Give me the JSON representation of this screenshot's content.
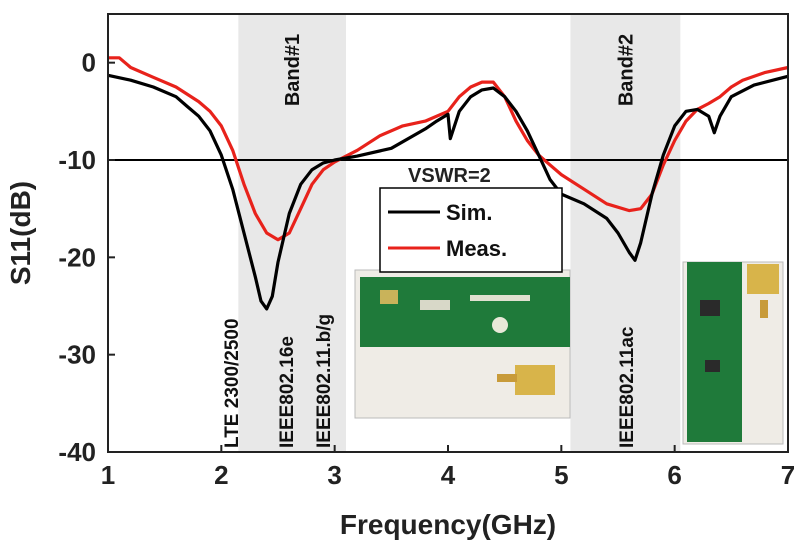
{
  "chart_data": {
    "type": "line",
    "xlabel": "Frequency(GHz)",
    "ylabel": "S11(dB)",
    "xlim": [
      1,
      7
    ],
    "ylim": [
      -40,
      5
    ],
    "xticks": [
      "1",
      "2",
      "3",
      "4",
      "5",
      "6",
      "7"
    ],
    "yticks": [
      "0",
      "-10",
      "-20",
      "-30",
      "-40"
    ],
    "grid": false,
    "legend_position": "center",
    "series": [
      {
        "name": "Sim.",
        "color": "#000000",
        "x": [
          1.0,
          1.2,
          1.4,
          1.6,
          1.7,
          1.8,
          1.9,
          2.0,
          2.1,
          2.2,
          2.3,
          2.35,
          2.4,
          2.45,
          2.5,
          2.6,
          2.7,
          2.8,
          2.9,
          3.0,
          3.2,
          3.5,
          3.8,
          3.9,
          4.0,
          4.02,
          4.1,
          4.2,
          4.3,
          4.4,
          4.5,
          4.6,
          4.7,
          4.8,
          4.9,
          5.0,
          5.2,
          5.4,
          5.5,
          5.6,
          5.65,
          5.7,
          5.8,
          5.9,
          6.0,
          6.1,
          6.2,
          6.3,
          6.35,
          6.4,
          6.5,
          6.7,
          6.9,
          7.0
        ],
        "y": [
          -1.3,
          -1.8,
          -2.5,
          -3.5,
          -4.5,
          -5.5,
          -7.0,
          -9.5,
          -13.0,
          -17.5,
          -22.0,
          -24.5,
          -25.3,
          -24.0,
          -20.5,
          -15.5,
          -12.5,
          -11.0,
          -10.3,
          -10.0,
          -9.6,
          -8.8,
          -6.8,
          -6.0,
          -5.3,
          -7.8,
          -5.0,
          -3.5,
          -2.8,
          -2.6,
          -3.5,
          -5.0,
          -7.0,
          -9.5,
          -12.0,
          -13.5,
          -14.5,
          -16.0,
          -17.5,
          -19.5,
          -20.3,
          -18.5,
          -13.5,
          -9.5,
          -6.5,
          -5.0,
          -4.8,
          -5.5,
          -7.2,
          -5.5,
          -3.5,
          -2.3,
          -1.7,
          -1.4
        ]
      },
      {
        "name": "Meas.",
        "color": "#e8221b",
        "x": [
          1.0,
          1.1,
          1.2,
          1.4,
          1.6,
          1.8,
          1.9,
          2.0,
          2.1,
          2.2,
          2.3,
          2.4,
          2.5,
          2.6,
          2.7,
          2.8,
          2.9,
          3.0,
          3.2,
          3.4,
          3.6,
          3.8,
          4.0,
          4.1,
          4.2,
          4.3,
          4.4,
          4.5,
          4.6,
          4.7,
          4.8,
          4.9,
          5.0,
          5.2,
          5.4,
          5.6,
          5.7,
          5.8,
          5.9,
          6.0,
          6.1,
          6.2,
          6.3,
          6.4,
          6.5,
          6.6,
          6.8,
          7.0
        ],
        "y": [
          0.5,
          0.5,
          -0.5,
          -1.5,
          -2.5,
          -4.0,
          -5.0,
          -6.5,
          -9.0,
          -12.5,
          -15.5,
          -17.5,
          -18.2,
          -17.5,
          -15.0,
          -12.5,
          -11.0,
          -10.2,
          -9.0,
          -7.5,
          -6.5,
          -6.0,
          -5.0,
          -3.5,
          -2.5,
          -2.0,
          -2.0,
          -3.5,
          -6.0,
          -8.0,
          -9.5,
          -10.5,
          -11.5,
          -13.0,
          -14.5,
          -15.2,
          -15.0,
          -13.5,
          -10.5,
          -8.0,
          -6.0,
          -4.8,
          -4.2,
          -3.5,
          -2.5,
          -1.8,
          -1.0,
          -0.5
        ]
      }
    ],
    "reference_line": {
      "y": -10,
      "label": "VSWR=2"
    },
    "bands": [
      {
        "label": "Band#1",
        "x_start": 2.15,
        "x_end": 3.1
      },
      {
        "label": "Band#2",
        "x_start": 5.08,
        "x_end": 6.05
      }
    ],
    "annotations": [
      "LTE 2300/2500",
      "IEEE802.16e",
      "IEEE802.11.b/g",
      "IEEE802.11ac"
    ]
  }
}
